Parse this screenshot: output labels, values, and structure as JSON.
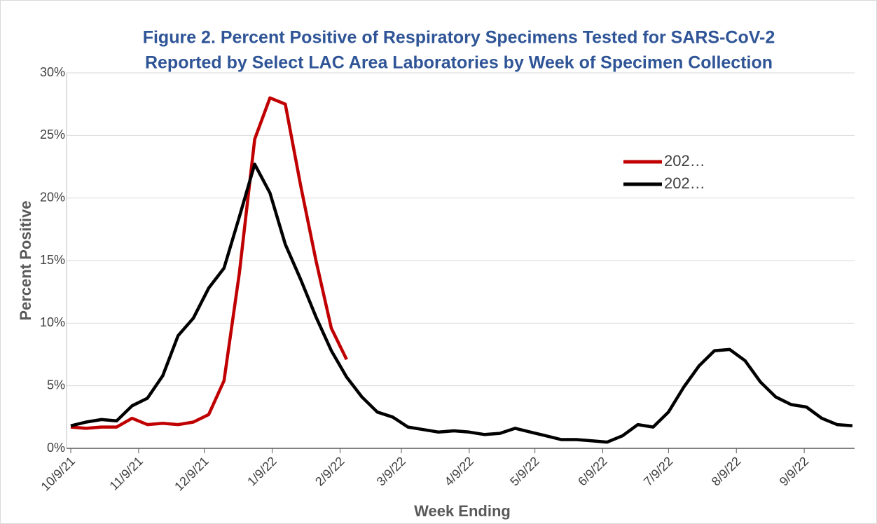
{
  "chart_data": {
    "type": "line",
    "title": [
      "Figure 2. Percent Positive of Respiratory Specimens Tested for SARS-CoV-2",
      "Reported by Select LAC Area Laboratories by Week of Specimen Collection"
    ],
    "x_label": "Week Ending",
    "y_label": "Percent Positive",
    "x": [
      "2021-10-09",
      "2021-10-16",
      "2021-10-23",
      "2021-10-30",
      "2021-11-06",
      "2021-11-13",
      "2021-11-20",
      "2021-11-27",
      "2021-12-04",
      "2021-12-11",
      "2021-12-18",
      "2021-12-25",
      "2022-01-01",
      "2022-01-08",
      "2022-01-15",
      "2022-01-22",
      "2022-01-29",
      "2022-02-05",
      "2022-02-12",
      "2022-02-19",
      "2022-02-26",
      "2022-03-05",
      "2022-03-12",
      "2022-03-19",
      "2022-03-26",
      "2022-04-02",
      "2022-04-09",
      "2022-04-16",
      "2022-04-23",
      "2022-04-30",
      "2022-05-07",
      "2022-05-14",
      "2022-05-21",
      "2022-05-28",
      "2022-06-04",
      "2022-06-11",
      "2022-06-18",
      "2022-06-25",
      "2022-07-02",
      "2022-07-09",
      "2022-07-16",
      "2022-07-23",
      "2022-07-30",
      "2022-08-06",
      "2022-08-13",
      "2022-08-20",
      "2022-08-27",
      "2022-09-03",
      "2022-09-10",
      "2022-09-17",
      "2022-09-24",
      "2022-10-01"
    ],
    "series": [
      {
        "name": "202…",
        "color": "#c00000",
        "values": [
          1.7,
          1.6,
          1.7,
          1.7,
          2.4,
          1.9,
          2.0,
          1.9,
          2.1,
          2.7,
          5.4,
          14.0,
          24.7,
          28.0,
          27.5,
          21.0,
          15.0,
          9.6,
          7.1,
          null,
          null,
          null,
          null,
          null,
          null,
          null,
          null,
          null,
          null,
          null,
          null,
          null,
          null,
          null,
          null,
          null,
          null,
          null,
          null,
          null,
          null,
          null,
          null,
          null,
          null,
          null,
          null,
          null,
          null,
          null,
          null,
          null
        ]
      },
      {
        "name": "202…",
        "color": "#000000",
        "values": [
          1.8,
          2.1,
          2.3,
          2.2,
          3.4,
          4.0,
          5.8,
          9.0,
          10.4,
          12.8,
          14.4,
          18.5,
          22.7,
          20.4,
          16.3,
          13.5,
          10.5,
          7.8,
          5.7,
          4.1,
          2.9,
          2.5,
          1.7,
          1.5,
          1.3,
          1.4,
          1.3,
          1.1,
          1.2,
          1.6,
          1.3,
          1.0,
          0.7,
          0.7,
          0.6,
          0.5,
          1.0,
          1.9,
          1.7,
          2.9,
          4.9,
          6.6,
          7.8,
          7.9,
          7.0,
          5.3,
          4.1,
          3.5,
          3.3,
          2.4,
          1.9,
          1.8
        ]
      }
    ],
    "xlim": [
      "2021-10-09",
      "2022-10-02"
    ],
    "xticks": [
      {
        "value": "2021-10-09",
        "label": "10/9/21"
      },
      {
        "value": "2021-11-09",
        "label": "11/9/21"
      },
      {
        "value": "2021-12-09",
        "label": "12/9/21"
      },
      {
        "value": "2022-01-09",
        "label": "1/9/22"
      },
      {
        "value": "2022-02-09",
        "label": "2/9/22"
      },
      {
        "value": "2022-03-09",
        "label": "3/9/22"
      },
      {
        "value": "2022-04-09",
        "label": "4/9/22"
      },
      {
        "value": "2022-05-09",
        "label": "5/9/22"
      },
      {
        "value": "2022-06-09",
        "label": "6/9/22"
      },
      {
        "value": "2022-07-09",
        "label": "7/9/22"
      },
      {
        "value": "2022-08-09",
        "label": "8/9/22"
      },
      {
        "value": "2022-09-09",
        "label": "9/9/22"
      }
    ],
    "ylim": [
      0,
      30
    ],
    "yticks": [
      {
        "value": 0,
        "label": "0%"
      },
      {
        "value": 5,
        "label": "5%"
      },
      {
        "value": 10,
        "label": "10%"
      },
      {
        "value": 15,
        "label": "15%"
      },
      {
        "value": 20,
        "label": "20%"
      },
      {
        "value": 25,
        "label": "25%"
      },
      {
        "value": 30,
        "label": "30%"
      }
    ],
    "grid": true,
    "legend": "upper-right"
  }
}
